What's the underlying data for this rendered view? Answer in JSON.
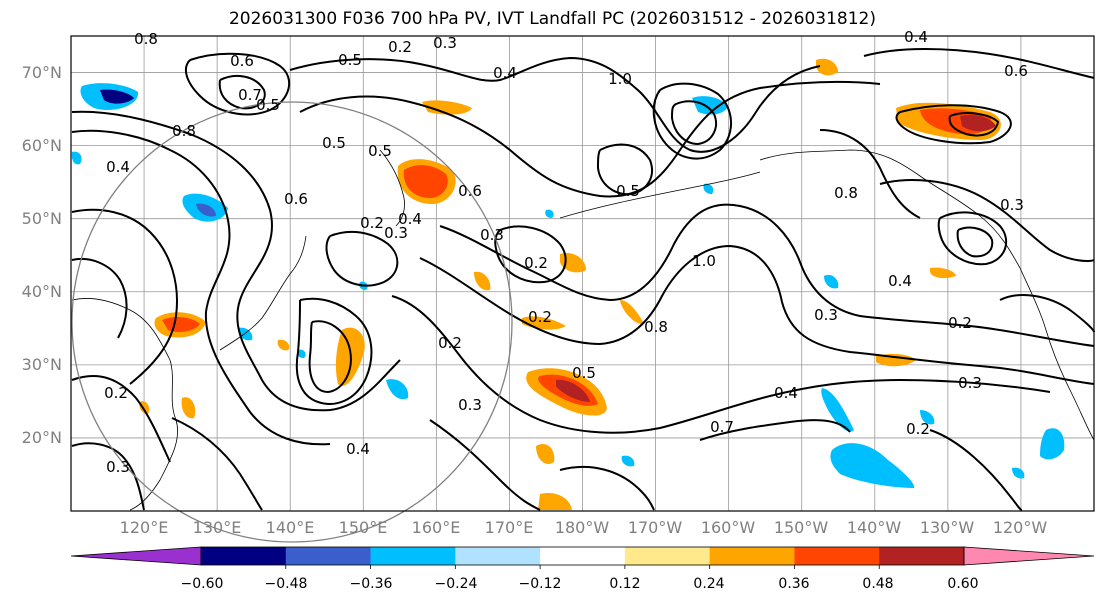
{
  "title": "2026031300 F036 700 hPa PV, IVT Landfall PC (2026031512 - 2026031812)",
  "map": {
    "projection": "cylindrical",
    "lon_range": [
      110,
      250
    ],
    "lat_range": [
      10,
      75
    ],
    "lat_labels": [
      "20°N",
      "30°N",
      "40°N",
      "50°N",
      "60°N",
      "70°N"
    ],
    "lon_labels": [
      "120°E",
      "130°E",
      "140°E",
      "150°E",
      "160°E",
      "170°E",
      "180°W",
      "170°W",
      "160°W",
      "150°W",
      "140°W",
      "130°W",
      "120°W"
    ],
    "contour_labels": [
      "0.8",
      "0.2",
      "0.3",
      "0.5",
      "0.4",
      "0.6",
      "0.5",
      "1.0",
      "0.8",
      "0.7",
      "0.4",
      "0.6",
      "0.5",
      "0.2",
      "0.3",
      "0.5",
      "0.4",
      "0.6",
      "0.3",
      "0.2",
      "0.4",
      "0.6",
      "0.8",
      "0.4",
      "0.3",
      "0.2",
      "1.0",
      "0.5",
      "0.2",
      "0.5",
      "0.8",
      "0.3",
      "0.2",
      "0.3",
      "0.4",
      "0.2",
      "0.7",
      "0.2",
      "0.3",
      "0.4",
      "0.3"
    ],
    "pressure_level": "700 hPa",
    "field": "PV",
    "overlay": "IVT Landfall PC"
  },
  "colorbar": {
    "levels": [
      -0.6,
      -0.48,
      -0.36,
      -0.24,
      -0.12,
      0.12,
      0.24,
      0.36,
      0.48,
      0.6
    ],
    "tick_labels": [
      "−0.60",
      "−0.48",
      "−0.36",
      "−0.24",
      "−0.12",
      "0.12",
      "0.24",
      "0.36",
      "0.48",
      "0.60"
    ],
    "colors": [
      "#9b30d0",
      "#000080",
      "#3a5fcd",
      "#00bfff",
      "#b0e2ff",
      "#ffffff",
      "#ffe98a",
      "#ffa500",
      "#ff4500",
      "#b22222",
      "#ff88b0"
    ]
  },
  "colors": {
    "negative_fill": "#00bfff",
    "negative_strong": "#000080",
    "positive_fill": "#ffa500",
    "positive_strong": "#ff4500",
    "positive_max": "#b22222",
    "contour": "#000000",
    "grid": "#999999",
    "ring": "#808080"
  }
}
